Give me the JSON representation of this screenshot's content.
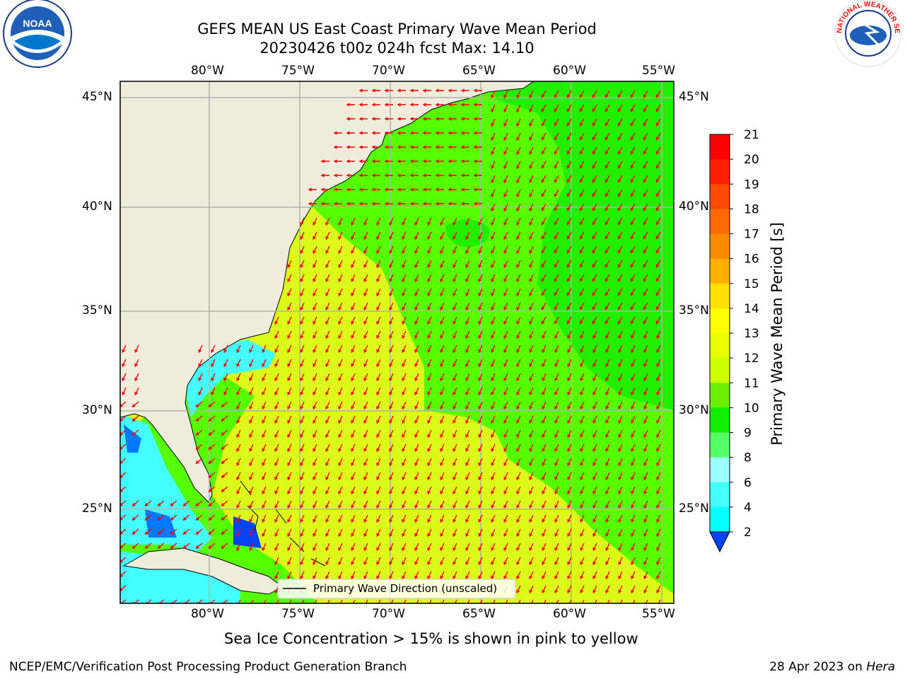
{
  "title": {
    "line1": "GEFS MEAN US East Coast Primary Wave Mean Period",
    "line2": "20230426 t00z 024h fcst   Max: 14.10"
  },
  "map": {
    "lon_ticks": [
      "80°W",
      "75°W",
      "70°W",
      "65°W",
      "60°W",
      "55°W"
    ],
    "lat_ticks": [
      "45°N",
      "40°N",
      "35°N",
      "30°N",
      "25°N"
    ],
    "legend_label": "Primary Wave Direction (unscaled)",
    "colors": {
      "land": "#efecdc",
      "ocean_low": "#55ff00",
      "ocean_mid": "#22ee00",
      "ocean_high": "#ccff00",
      "ocean_warm": "#dcfa1a",
      "arrow": "#ff0000",
      "grid": "#b0b0b0"
    }
  },
  "colorbar": {
    "label": "Primary Wave Mean Period [s]",
    "ticks": [
      "21",
      "20",
      "19",
      "18",
      "17",
      "16",
      "15",
      "14",
      "13",
      "12",
      "11",
      "10",
      "9",
      "8",
      "6",
      "4",
      "2"
    ],
    "colors": [
      "#ff0000",
      "#ff2000",
      "#ff4800",
      "#ff6a00",
      "#ff8c00",
      "#ffb000",
      "#ffe000",
      "#ffff00",
      "#e8ff00",
      "#ccff00",
      "#6af000",
      "#11ee00",
      "#55ff66",
      "#99ffff",
      "#44ffff",
      "#00ffff",
      "#0099ff",
      "#0044ff"
    ]
  },
  "notes": {
    "sea_ice": "Sea Ice Concentration > 15% is shown in pink to yellow"
  },
  "footer": {
    "left": "NCEP/EMC/Verification Post Processing Product Generation Branch",
    "date": "28 Apr 2023 on ",
    "machine": "Hera"
  },
  "logos": {
    "noaa": "NOAA",
    "nws": "NATIONAL WEATHER SERVICE"
  }
}
